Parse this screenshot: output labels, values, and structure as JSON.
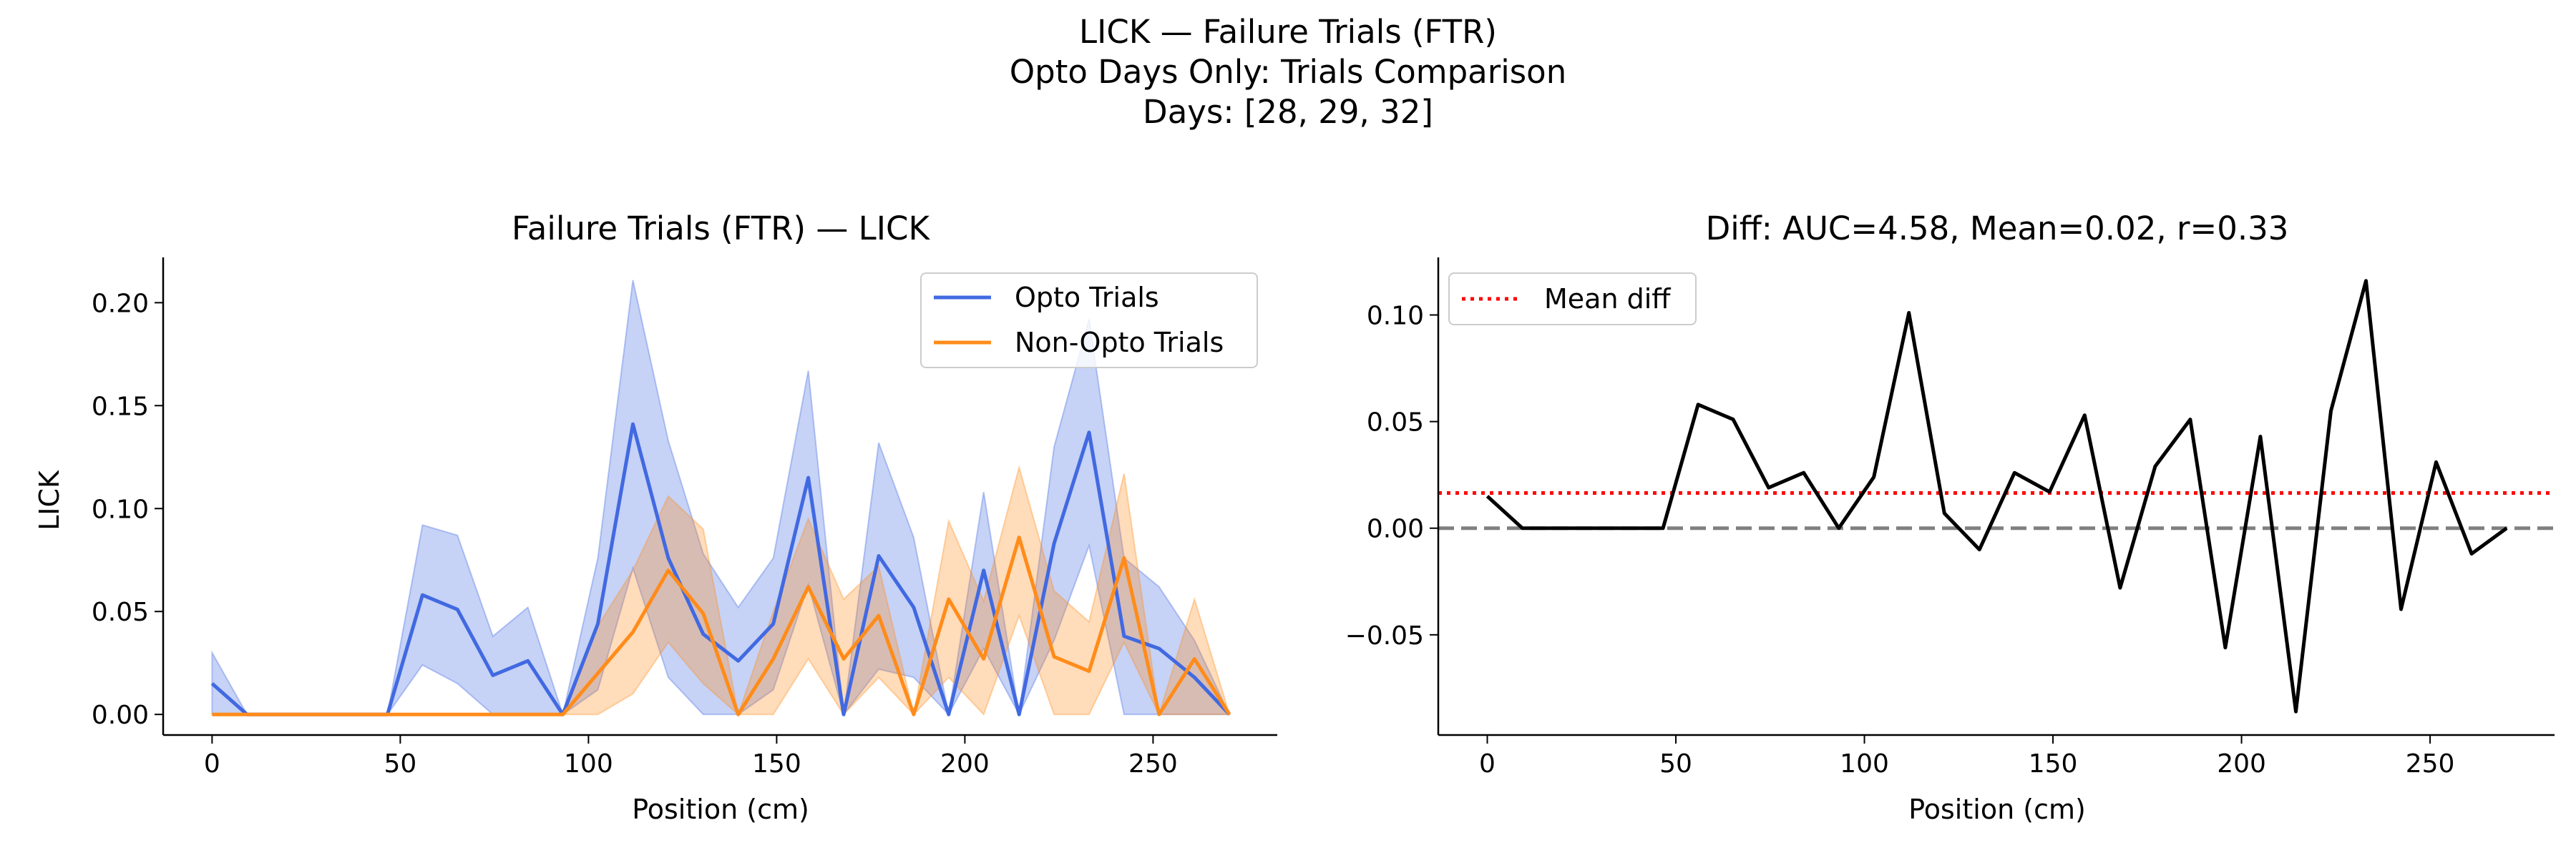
{
  "figure": {
    "suptitle": [
      "LICK — Failure Trials (FTR)",
      "Opto Days Only: Trials Comparison",
      "Days: [28, 29, 32]"
    ]
  },
  "chart_data": [
    {
      "type": "line",
      "title": "Failure Trials (FTR) — LICK",
      "xlabel": "Position (cm)",
      "ylabel": "LICK",
      "xlim": [
        -13,
        283
      ],
      "ylim": [
        -0.01,
        0.222
      ],
      "xticks": [
        0,
        50,
        100,
        150,
        200,
        250
      ],
      "yticks": [
        0.0,
        0.05,
        0.1,
        0.15,
        0.2
      ],
      "ytick_labels": [
        "0.00",
        "0.05",
        "0.10",
        "0.15",
        "0.20"
      ],
      "legend_position": "upper right",
      "grid": false,
      "x": [
        0,
        9.3,
        18.6,
        28,
        37.3,
        46.6,
        55.9,
        65.2,
        74.6,
        83.9,
        93.2,
        102.5,
        111.8,
        121.2,
        130.5,
        139.8,
        149.1,
        158.4,
        167.8,
        177.1,
        186.4,
        195.7,
        205,
        214.4,
        223.7,
        233,
        242.3,
        251.6,
        261,
        270.3
      ],
      "series": [
        {
          "name": "Opto Trials",
          "color": "#4169e1",
          "band_color": "#9db1ee",
          "values": [
            0.015,
            0.0,
            0.0,
            0.0,
            0.0,
            0.0,
            0.058,
            0.051,
            0.019,
            0.026,
            0.0,
            0.044,
            0.141,
            0.076,
            0.039,
            0.026,
            0.044,
            0.115,
            0.0,
            0.077,
            0.052,
            0.0,
            0.07,
            0.0,
            0.083,
            0.137,
            0.038,
            0.032,
            0.018,
            0.0
          ],
          "lower": [
            0.0,
            0.0,
            0.0,
            0.0,
            0.0,
            0.0,
            0.024,
            0.015,
            0.0,
            0.0,
            0.0,
            0.012,
            0.071,
            0.018,
            0.0,
            0.0,
            0.012,
            0.063,
            0.0,
            0.022,
            0.018,
            0.0,
            0.032,
            0.0,
            0.036,
            0.082,
            0.0,
            0.0,
            0.0,
            0.0
          ],
          "upper": [
            0.03,
            0.0,
            0.0,
            0.0,
            0.0,
            0.0,
            0.092,
            0.087,
            0.038,
            0.052,
            0.0,
            0.076,
            0.211,
            0.133,
            0.078,
            0.052,
            0.076,
            0.167,
            0.0,
            0.132,
            0.086,
            0.0,
            0.108,
            0.0,
            0.13,
            0.192,
            0.076,
            0.062,
            0.036,
            0.0
          ]
        },
        {
          "name": "Non-Opto Trials",
          "color": "#ff8c1a",
          "band_color": "#ffcc99",
          "values": [
            0.0,
            0.0,
            0.0,
            0.0,
            0.0,
            0.0,
            0.0,
            0.0,
            0.0,
            0.0,
            0.0,
            0.02,
            0.04,
            0.07,
            0.049,
            0.0,
            0.027,
            0.062,
            0.027,
            0.048,
            0.0,
            0.056,
            0.027,
            0.086,
            0.028,
            0.021,
            0.076,
            0.0,
            0.027,
            0.0
          ],
          "lower": [
            0.0,
            0.0,
            0.0,
            0.0,
            0.0,
            0.0,
            0.0,
            0.0,
            0.0,
            0.0,
            0.0,
            0.0,
            0.01,
            0.035,
            0.015,
            0.0,
            0.0,
            0.027,
            0.0,
            0.018,
            0.0,
            0.018,
            0.0,
            0.048,
            0.0,
            0.0,
            0.035,
            0.0,
            0.0,
            0.0
          ],
          "upper": [
            0.0,
            0.0,
            0.0,
            0.0,
            0.0,
            0.0,
            0.0,
            0.0,
            0.0,
            0.0,
            0.0,
            0.043,
            0.07,
            0.106,
            0.09,
            0.0,
            0.05,
            0.095,
            0.056,
            0.072,
            0.0,
            0.094,
            0.055,
            0.12,
            0.06,
            0.045,
            0.117,
            0.0,
            0.056,
            0.0
          ]
        }
      ]
    },
    {
      "type": "line",
      "title": "Diff: AUC=4.58, Mean=0.02, r=0.33",
      "xlabel": "Position (cm)",
      "ylabel": "",
      "xlim": [
        -13,
        283
      ],
      "ylim": [
        -0.097,
        0.127
      ],
      "xticks": [
        0,
        50,
        100,
        150,
        200,
        250
      ],
      "yticks": [
        -0.05,
        0.0,
        0.05,
        0.1
      ],
      "ytick_labels": [
        "−0.05",
        "0.00",
        "0.05",
        "0.10"
      ],
      "legend_position": "upper left",
      "grid": false,
      "mean_diff": 0.0165,
      "x": [
        0,
        9.3,
        18.6,
        28,
        37.3,
        46.6,
        55.9,
        65.2,
        74.6,
        83.9,
        93.2,
        102.5,
        111.8,
        121.2,
        130.5,
        139.8,
        149.1,
        158.4,
        167.8,
        177.1,
        186.4,
        195.7,
        205,
        214.4,
        223.7,
        233,
        242.3,
        251.6,
        261,
        270.3
      ],
      "series": [
        {
          "name": "",
          "color": "#000000",
          "values": [
            0.015,
            0.0,
            0.0,
            0.0,
            0.0,
            0.0,
            0.058,
            0.051,
            0.019,
            0.026,
            0.0,
            0.024,
            0.101,
            0.007,
            -0.01,
            0.026,
            0.017,
            0.053,
            -0.028,
            0.029,
            0.051,
            -0.056,
            0.043,
            -0.086,
            0.055,
            0.116,
            -0.038,
            0.031,
            -0.012,
            0.0
          ]
        }
      ],
      "reference_lines": [
        {
          "name": "Mean diff",
          "value": 0.0165,
          "color": "#ff0000",
          "style": "dotted"
        },
        {
          "name": "",
          "value": 0.0,
          "color": "#808080",
          "style": "dashed"
        }
      ]
    }
  ]
}
